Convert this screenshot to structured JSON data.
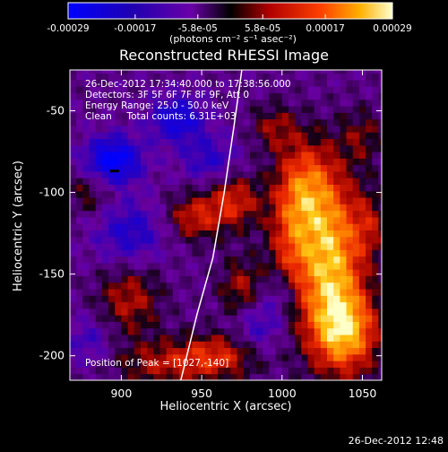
{
  "chart_data": {
    "type": "heatmap",
    "title": "Reconstructed RHESSI Image",
    "xlabel": "Heliocentric X (arcsec)",
    "ylabel": "Heliocentric Y (arcsec)",
    "xlim": [
      868,
      1062
    ],
    "ylim": [
      -215,
      -25
    ],
    "xticks": [
      900,
      950,
      1000,
      1050
    ],
    "yticks": [
      -50,
      -100,
      -150,
      -200
    ],
    "colorbar": {
      "ticks": [
        "-0.00029",
        "-0.00017",
        "-5.8e-05",
        "5.8e-05",
        "0.00017",
        "0.00029"
      ],
      "unit_label": "(photons cm⁻² s⁻¹ asec⁻²)",
      "range": [
        -0.00029,
        0.00029
      ]
    },
    "info_lines": [
      "26-Dec-2012 17:34:40.000 to 17:38:56.000",
      "Detectors: 3F 5F 6F 7F 8F 9F, Att 0",
      "Energy Range: 25.0 - 50.0 keV",
      "Clean     Total counts: 6.31E+03"
    ],
    "peak_label": "Position of Peak = [1027,-140]",
    "peak": [
      1027,
      -140
    ],
    "limb_curve": [
      [
        975,
        -25
      ],
      [
        970,
        -60
      ],
      [
        964,
        -100
      ],
      [
        957,
        -140
      ],
      [
        947,
        -175
      ],
      [
        937,
        -215
      ]
    ],
    "colors": {
      "background": "#000000",
      "text": "#ffffff",
      "limb": "#ffffff"
    }
  },
  "footer_timestamp": "26-Dec-2012 12:48"
}
